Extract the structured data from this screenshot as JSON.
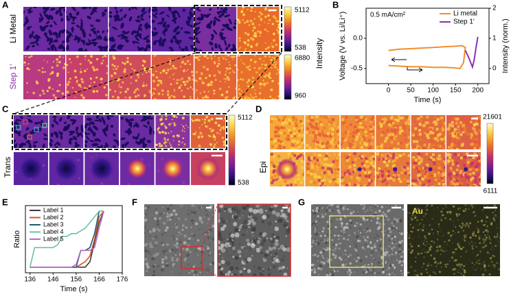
{
  "panel_labels": [
    "A",
    "B",
    "C",
    "D",
    "E",
    "F",
    "G"
  ],
  "panel_a": {
    "row_labels": [
      "Li Metal",
      "Step 1'"
    ],
    "colorbar_title": "Intensity",
    "colorbars": [
      {
        "max": 5112,
        "min": 538
      },
      {
        "max": 6880,
        "min": 960
      }
    ]
  },
  "panel_c": {
    "row_label": "Trans",
    "colorbar": {
      "max": 5112,
      "min": 538
    }
  },
  "panel_d": {
    "row_label": "Epi",
    "colorbar": {
      "max": 21601,
      "min": 6111
    }
  },
  "panel_g": {
    "label": "Au"
  },
  "chart_data": [
    {
      "type": "line",
      "annotation": "0.5 mA/cm²",
      "xlabel": "Time (s)",
      "ylabel": "Voltage (V  vs. Li/Li⁺)",
      "y2label": "Intensity (norm.)",
      "xlim": [
        -50,
        225
      ],
      "xticks": [
        0,
        50,
        100,
        150,
        200
      ],
      "ylim": [
        -0.75,
        0.5
      ],
      "yticks": [
        -0.5,
        {
          "value": 0,
          "label": "0.0"
        }
      ],
      "y2lim": [
        -0.5,
        2
      ],
      "y2ticks": [
        0,
        1,
        2
      ],
      "legend": "upper right",
      "series": [
        {
          "name": "Li metal",
          "color": "#f28e2b",
          "x": [
            0,
            25,
            50,
            75,
            100,
            125,
            150,
            160,
            168,
            172,
            165,
            150,
            125,
            100,
            75,
            50,
            25,
            0
          ],
          "values": [
            -0.45,
            -0.46,
            -0.47,
            -0.47,
            -0.48,
            -0.48,
            -0.49,
            -0.5,
            -0.4,
            -0.15,
            -0.12,
            -0.13,
            -0.14,
            -0.15,
            -0.16,
            -0.17,
            -0.18,
            -0.2
          ]
        },
        {
          "name": "Step 1'",
          "color": "#8e2fb0",
          "axis": "y2",
          "x": [
            172,
            180,
            188,
            192,
            196,
            200
          ],
          "values": [
            0.6,
            0.35,
            0.05,
            0.3,
            0.7,
            1.05
          ]
        }
      ]
    },
    {
      "type": "line",
      "xlabel": "Time (s)",
      "ylabel": "Ratio",
      "xlim": [
        134,
        176
      ],
      "xticks": [
        136,
        146,
        156,
        166,
        176
      ],
      "ylim": [
        -0.1,
        1.1
      ],
      "legend": "upper left",
      "x": [
        136,
        138,
        140,
        142,
        144,
        146,
        148,
        150,
        152,
        154,
        156,
        158,
        160,
        162,
        164,
        166,
        168
      ],
      "series": [
        {
          "name": "Label 1",
          "color": "#3a3a3a",
          "values": [
            0,
            0,
            0,
            0,
            0,
            0,
            0,
            0,
            0,
            0,
            0,
            0,
            0,
            0.1,
            0.45,
            0.8,
            1
          ]
        },
        {
          "name": "Label 2",
          "color": "#d9531e",
          "values": [
            0,
            0,
            0,
            0,
            0,
            0,
            0,
            0,
            0,
            0,
            0,
            0.05,
            0.1,
            0.2,
            0.5,
            0.9,
            1
          ]
        },
        {
          "name": "Label 3",
          "color": "#1d5b73",
          "values": [
            0,
            0,
            0,
            0,
            0,
            0,
            0,
            0,
            0,
            0,
            0,
            0.3,
            0.3,
            0.35,
            0.6,
            1,
            1
          ]
        },
        {
          "name": "Label 4",
          "color": "#66c2a5",
          "values": [
            0,
            0.35,
            0.35,
            0.35,
            0.35,
            0.35,
            0.4,
            0.55,
            0.55,
            0.6,
            0.6,
            0.65,
            0.7,
            0.8,
            0.9,
            1,
            1
          ]
        },
        {
          "name": "Label 5",
          "color": "#b56ac4",
          "values": [
            0,
            0,
            0,
            0,
            0,
            0,
            0,
            0,
            0,
            0,
            0.05,
            0.3,
            0.3,
            0.3,
            0.35,
            0.7,
            1
          ]
        }
      ]
    }
  ]
}
